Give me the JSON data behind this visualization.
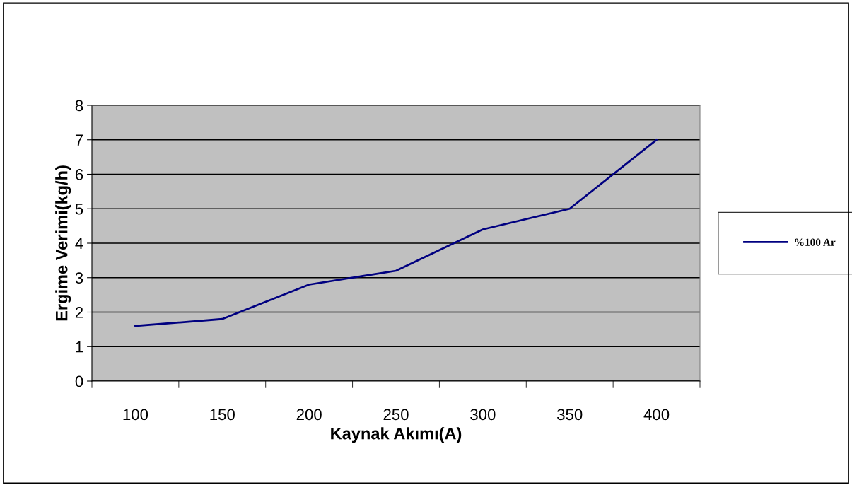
{
  "chart_data": {
    "type": "line",
    "xlabel": "Kaynak Akımı(A)",
    "ylabel": "Ergime Verimi(kg/h)",
    "categories": [
      "100",
      "150",
      "200",
      "250",
      "300",
      "350",
      "400"
    ],
    "series": [
      {
        "name": "%100 Ar",
        "color": "#000080",
        "values": [
          1.6,
          1.8,
          2.8,
          3.2,
          4.4,
          5.0,
          7.0
        ]
      }
    ],
    "ylim": [
      0,
      8
    ],
    "yticks": [
      0,
      1,
      2,
      3,
      4,
      5,
      6,
      7,
      8
    ],
    "grid": "y",
    "legend": "right",
    "marker": "none",
    "line_style": "solid"
  }
}
